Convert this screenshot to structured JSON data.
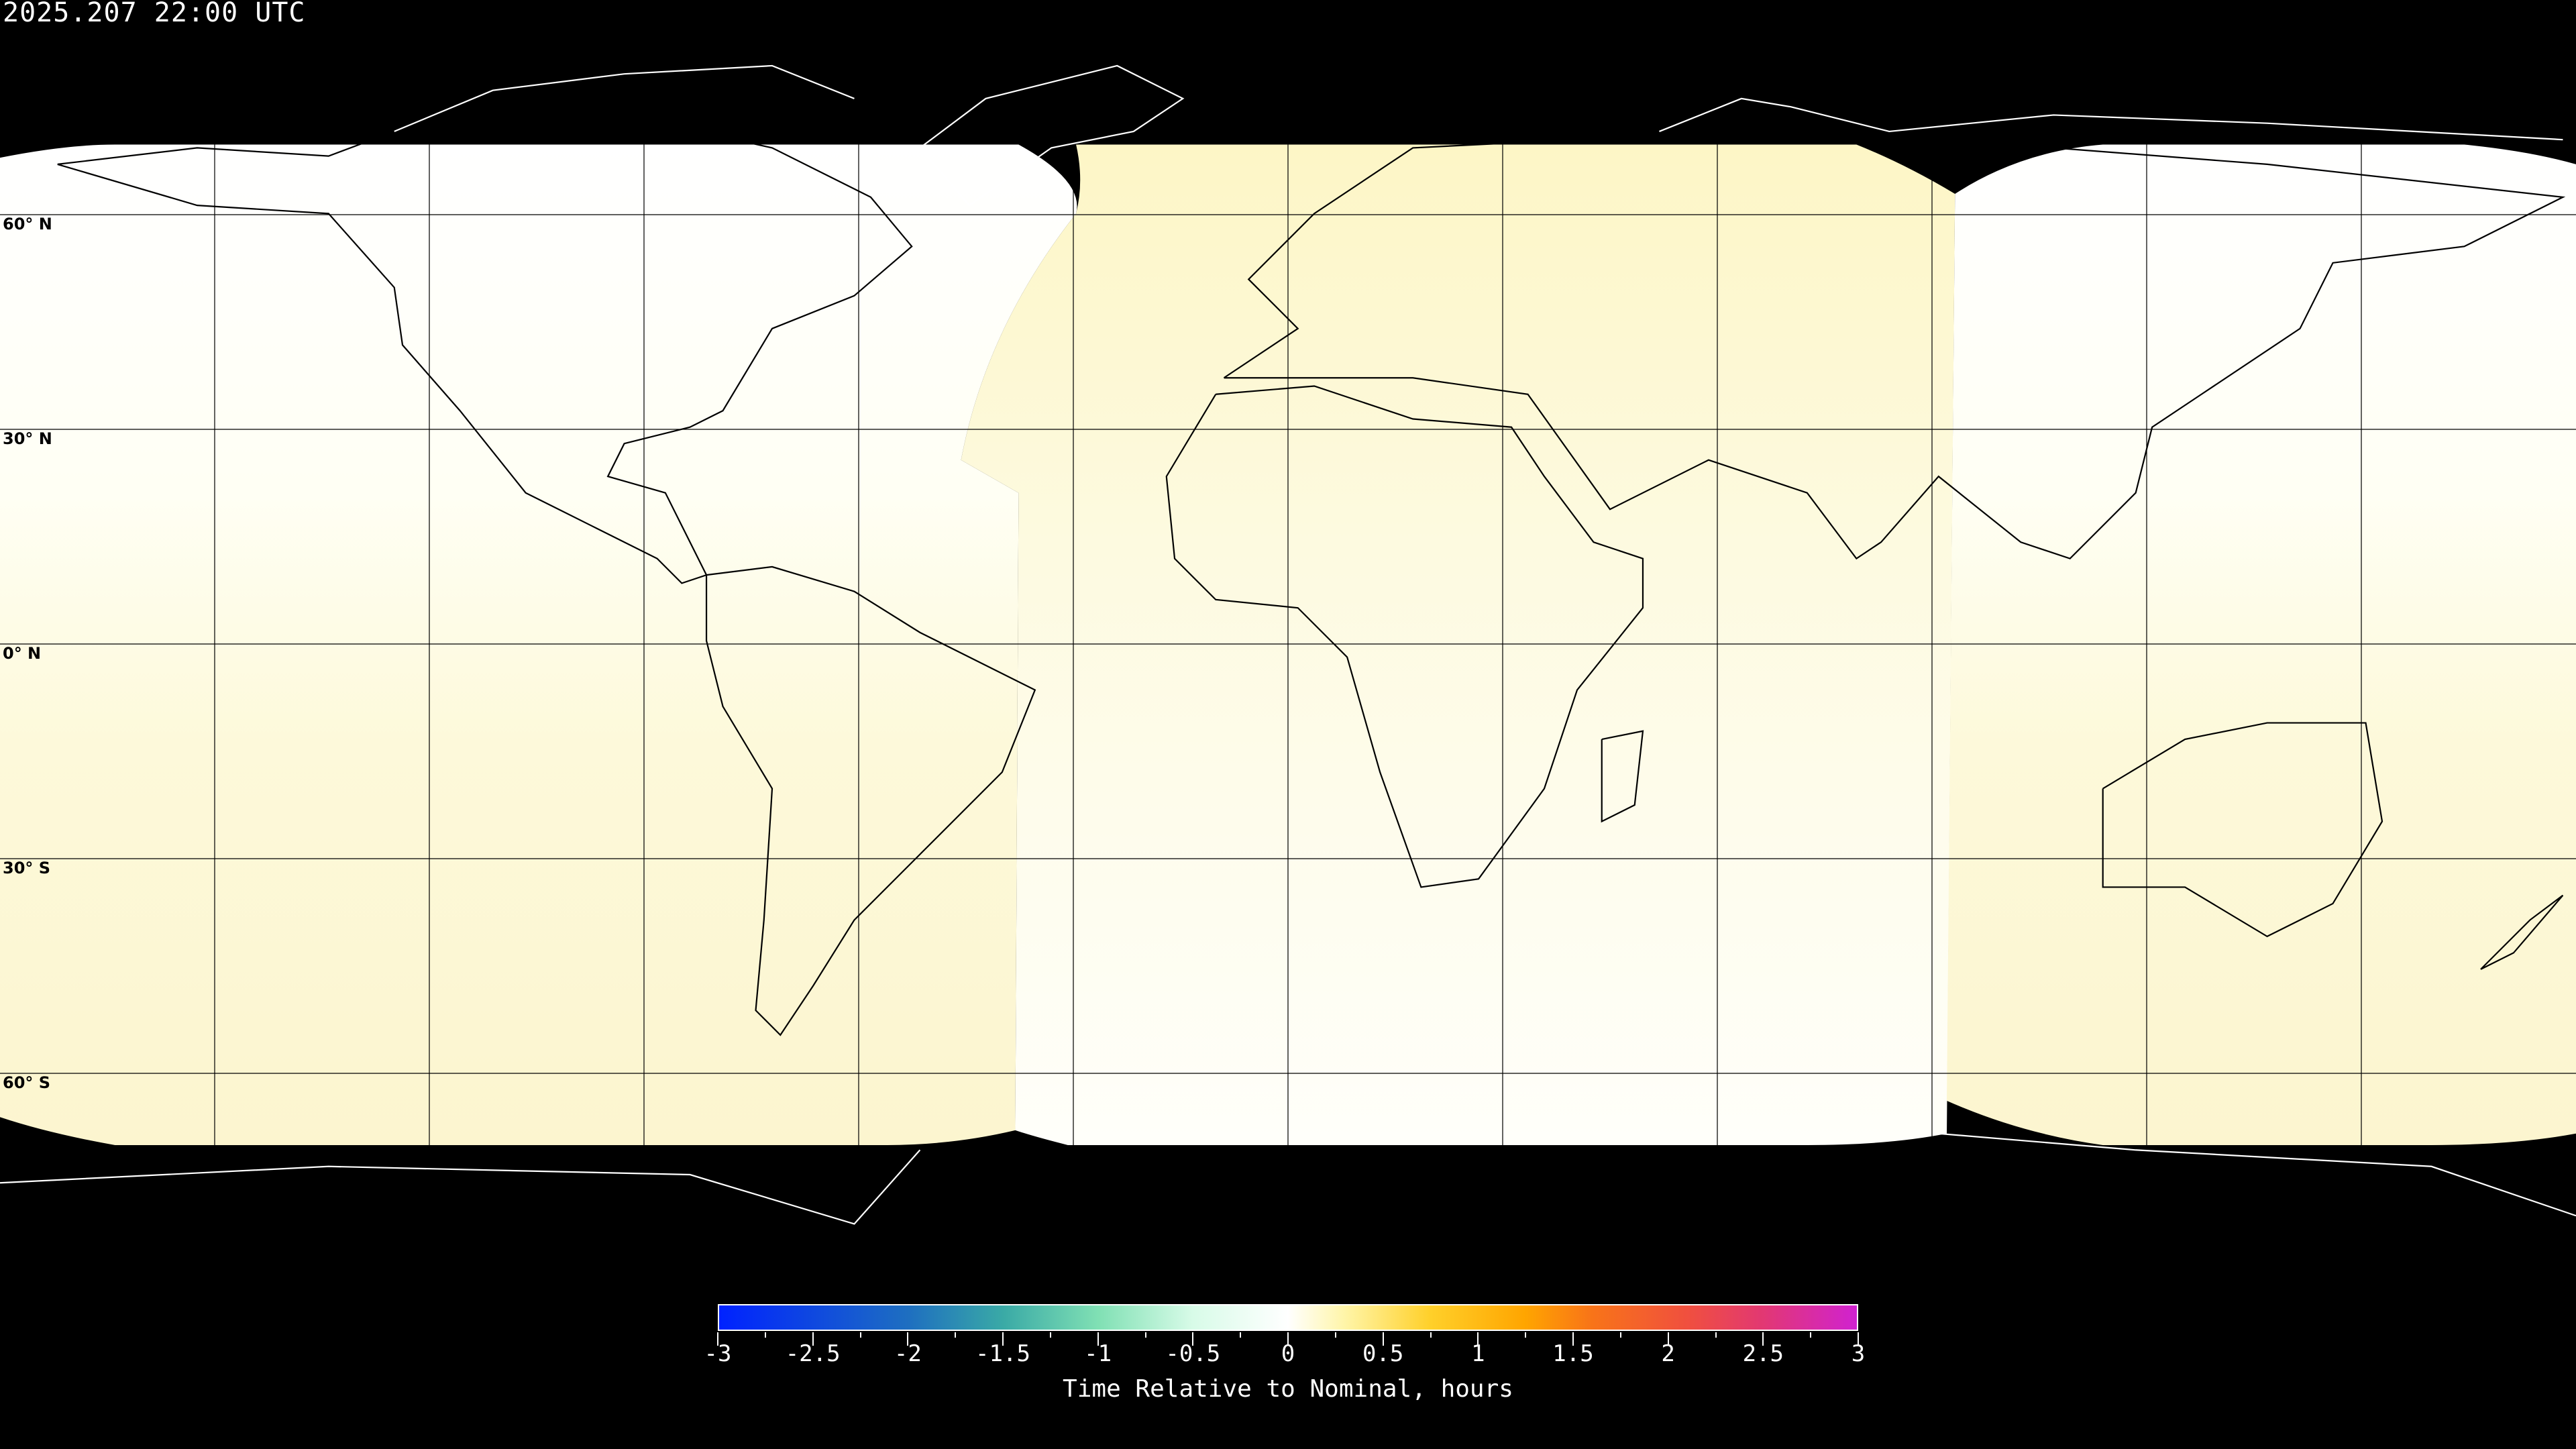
{
  "title": "2025.207 22:00 UTC",
  "map": {
    "projection": "equirectangular",
    "grid_spacing_deg": 30,
    "lat_labels": [
      "60° N",
      "30° N",
      "0° N",
      "30° S",
      "60° S"
    ],
    "background_color": "#000000",
    "coastline_color_on_data": "#000000",
    "coastline_color_on_background": "#ffffff",
    "fill_colors": {
      "near_zero": "#fffff6",
      "slightly_positive": "#fdf8d4"
    }
  },
  "colorbar": {
    "label": "Time Relative to Nominal, hours",
    "min": -3,
    "max": 3,
    "tick_labels": [
      "-3",
      "-2.5",
      "-2",
      "-1.5",
      "-1",
      "-0.5",
      "0",
      "0.5",
      "1",
      "1.5",
      "2",
      "2.5",
      "3"
    ],
    "colors": [
      {
        "value": -3,
        "color": "#0022ff"
      },
      {
        "value": -2,
        "color": "#1e6fc0"
      },
      {
        "value": -1.5,
        "color": "#3aaaa6"
      },
      {
        "value": -1,
        "color": "#80e0b4"
      },
      {
        "value": -0.5,
        "color": "#d8fbe8"
      },
      {
        "value": 0,
        "color": "#ffffff"
      },
      {
        "value": 0.3,
        "color": "#fff5a8"
      },
      {
        "value": 0.75,
        "color": "#ffd02a"
      },
      {
        "value": 1.25,
        "color": "#ffa500"
      },
      {
        "value": 1.6,
        "color": "#f87418"
      },
      {
        "value": 2.1,
        "color": "#f0503e"
      },
      {
        "value": 2.5,
        "color": "#e23872"
      },
      {
        "value": 3,
        "color": "#d022d0"
      }
    ]
  }
}
